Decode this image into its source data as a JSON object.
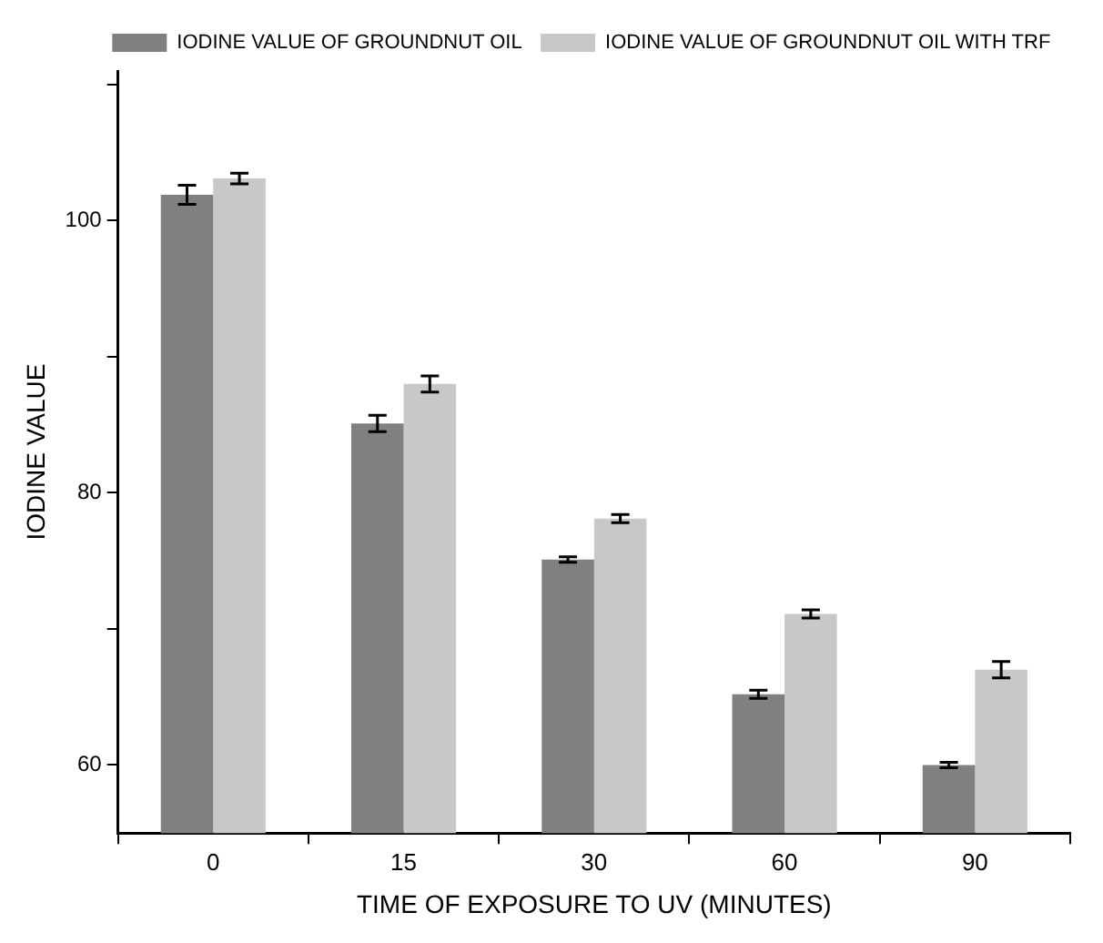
{
  "chart_data": {
    "type": "bar",
    "xlabel": "TIME OF EXPOSURE TO UV (MINUTES)",
    "ylabel": "IODINE VALUE",
    "categories": [
      "0",
      "15",
      "30",
      "60",
      "90"
    ],
    "series": [
      {
        "name": "IODINE VALUE OF GROUNDNUT OIL",
        "color": "#808080",
        "values": [
          101.9,
          85.1,
          75.1,
          65.2,
          60.0
        ],
        "errors": [
          0.7,
          0.6,
          0.2,
          0.3,
          0.2
        ]
      },
      {
        "name": "IODINE VALUE OF GROUNDNUT OIL WITH TRF",
        "color": "#c8c8c8",
        "values": [
          103.1,
          88.0,
          78.1,
          71.1,
          67.0
        ],
        "errors": [
          0.4,
          0.6,
          0.3,
          0.3,
          0.6
        ]
      }
    ],
    "ylim": [
      55,
      111
    ],
    "yticks": [
      60,
      {
        "value": 70,
        "label": null
      },
      80,
      {
        "value": 90,
        "label": null
      },
      100,
      {
        "value": 110,
        "label": null
      }
    ],
    "grid": false,
    "legend": "top right"
  }
}
